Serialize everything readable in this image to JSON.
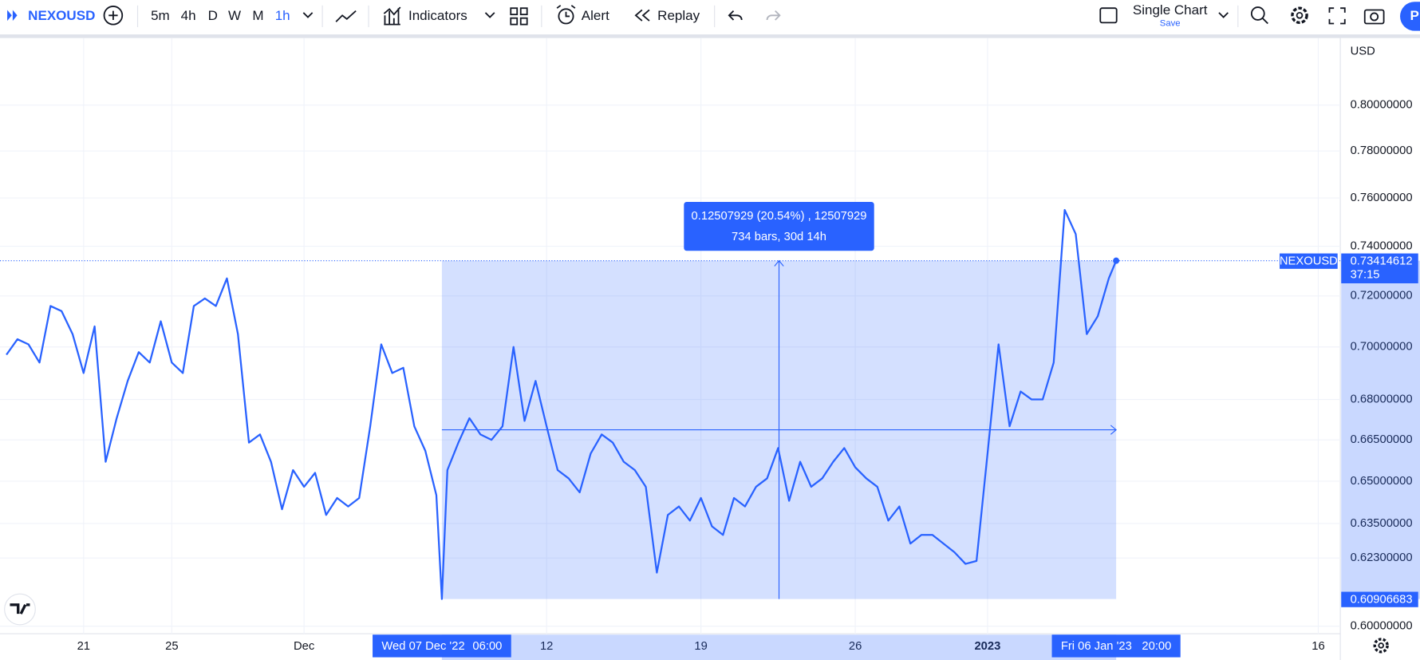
{
  "toolbar": {
    "symbol": "NEXOUSD",
    "intervals": [
      "5m",
      "4h",
      "D",
      "W",
      "M",
      "1h"
    ],
    "active_interval": 5,
    "indicators": "Indicators",
    "alert": "Alert",
    "replay": "Replay",
    "layout": "Single Chart",
    "save": "Save",
    "publish": "P"
  },
  "chart_data": {
    "type": "line",
    "symbol": "NEXOUSD",
    "currency": "USD",
    "color": "#2962ff",
    "log_scale": true,
    "grid": true,
    "x": [
      "2022-11-17 12:00",
      "2022-11-18 00:00",
      "2022-11-18 12:00",
      "2022-11-19 00:00",
      "2022-11-19 12:00",
      "2022-11-20 00:00",
      "2022-11-20 12:00",
      "2022-11-21 00:00",
      "2022-11-21 12:00",
      "2022-11-22 00:00",
      "2022-11-22 12:00",
      "2022-11-23 00:00",
      "2022-11-23 12:00",
      "2022-11-24 00:00",
      "2022-11-24 12:00",
      "2022-11-25 00:00",
      "2022-11-25 12:00",
      "2022-11-26 00:00",
      "2022-11-26 12:00",
      "2022-11-27 00:00",
      "2022-11-27 12:00",
      "2022-11-28 00:00",
      "2022-11-28 12:00",
      "2022-11-29 00:00",
      "2022-11-29 12:00",
      "2022-11-30 00:00",
      "2022-11-30 12:00",
      "2022-12-01 00:00",
      "2022-12-01 12:00",
      "2022-12-02 00:00",
      "2022-12-02 12:00",
      "2022-12-03 00:00",
      "2022-12-03 12:00",
      "2022-12-04 00:00",
      "2022-12-04 12:00",
      "2022-12-05 00:00",
      "2022-12-05 12:00",
      "2022-12-06 00:00",
      "2022-12-06 12:00",
      "2022-12-07 00:00",
      "2022-12-07 06:00",
      "2022-12-07 12:00",
      "2022-12-08 00:00",
      "2022-12-08 12:00",
      "2022-12-09 00:00",
      "2022-12-09 12:00",
      "2022-12-10 00:00",
      "2022-12-10 12:00",
      "2022-12-11 00:00",
      "2022-12-11 12:00",
      "2022-12-12 00:00",
      "2022-12-12 12:00",
      "2022-12-13 00:00",
      "2022-12-13 12:00",
      "2022-12-14 00:00",
      "2022-12-14 12:00",
      "2022-12-15 00:00",
      "2022-12-15 12:00",
      "2022-12-16 00:00",
      "2022-12-16 12:00",
      "2022-12-17 00:00",
      "2022-12-17 12:00",
      "2022-12-18 00:00",
      "2022-12-18 12:00",
      "2022-12-19 00:00",
      "2022-12-19 12:00",
      "2022-12-20 00:00",
      "2022-12-20 12:00",
      "2022-12-21 00:00",
      "2022-12-21 12:00",
      "2022-12-22 00:00",
      "2022-12-22 12:00",
      "2022-12-23 00:00",
      "2022-12-23 12:00",
      "2022-12-24 00:00",
      "2022-12-24 12:00",
      "2022-12-25 00:00",
      "2022-12-25 12:00",
      "2022-12-26 00:00",
      "2022-12-26 12:00",
      "2022-12-27 00:00",
      "2022-12-27 12:00",
      "2022-12-28 00:00",
      "2022-12-28 12:00",
      "2022-12-29 00:00",
      "2022-12-29 12:00",
      "2022-12-30 00:00",
      "2022-12-30 12:00",
      "2022-12-31 00:00",
      "2022-12-31 12:00",
      "2023-01-01 00:00",
      "2023-01-01 12:00",
      "2023-01-02 00:00",
      "2023-01-02 12:00",
      "2023-01-03 00:00",
      "2023-01-03 12:00",
      "2023-01-04 00:00",
      "2023-01-04 12:00",
      "2023-01-05 00:00",
      "2023-01-05 12:00",
      "2023-01-06 00:00",
      "2023-01-06 12:00",
      "2023-01-06 20:00"
    ],
    "values": [
      0.697,
      0.703,
      0.701,
      0.694,
      0.716,
      0.714,
      0.705,
      0.69,
      0.708,
      0.657,
      0.673,
      0.687,
      0.698,
      0.694,
      0.71,
      0.694,
      0.69,
      0.716,
      0.719,
      0.716,
      0.727,
      0.705,
      0.664,
      0.667,
      0.657,
      0.64,
      0.654,
      0.648,
      0.653,
      0.638,
      0.644,
      0.641,
      0.644,
      0.67,
      0.701,
      0.69,
      0.692,
      0.67,
      0.661,
      0.645,
      0.60906683,
      0.654,
      0.664,
      0.673,
      0.667,
      0.665,
      0.67,
      0.7,
      0.672,
      0.687,
      0.67,
      0.654,
      0.651,
      0.646,
      0.66,
      0.667,
      0.664,
      0.657,
      0.654,
      0.648,
      0.618,
      0.638,
      0.641,
      0.636,
      0.644,
      0.634,
      0.631,
      0.644,
      0.641,
      0.648,
      0.651,
      0.662,
      0.643,
      0.657,
      0.648,
      0.651,
      0.657,
      0.662,
      0.655,
      0.651,
      0.648,
      0.636,
      0.641,
      0.628,
      0.631,
      0.631,
      0.628,
      0.625,
      0.621,
      0.622,
      0.66,
      0.701,
      0.67,
      0.683,
      0.68,
      0.68,
      0.694,
      0.755,
      0.745,
      0.705,
      0.712,
      0.727,
      0.73414612
    ],
    "countdown": "37:15",
    "xlim": [
      "2022-11-17 05:00",
      "2023-01-17 00:00"
    ],
    "ylim": [
      0.5975,
      0.831
    ],
    "xticks": [
      {
        "value": "2022-11-21",
        "label": "21"
      },
      {
        "value": "2022-11-25",
        "label": "25"
      },
      {
        "value": "2022-12-01",
        "label": "Dec"
      },
      {
        "value": "2022-12-12",
        "label": "12"
      },
      {
        "value": "2022-12-19",
        "label": "19"
      },
      {
        "value": "2022-12-26",
        "label": "26"
      },
      {
        "value": "2023-01-01",
        "label": "2023"
      },
      {
        "value": "2023-01-16",
        "label": "16"
      }
    ],
    "yticks": [
      {
        "value": 0.8,
        "label": "0.80000000"
      },
      {
        "value": 0.78,
        "label": "0.78000000"
      },
      {
        "value": 0.76,
        "label": "0.76000000"
      },
      {
        "value": 0.74,
        "label": "0.74000000"
      },
      {
        "value": 0.72,
        "label": "0.72000000"
      },
      {
        "value": 0.7,
        "label": "0.70000000"
      },
      {
        "value": 0.68,
        "label": "0.68000000"
      },
      {
        "value": 0.665,
        "label": "0.66500000"
      },
      {
        "value": 0.65,
        "label": "0.65000000"
      },
      {
        "value": 0.635,
        "label": "0.63500000"
      },
      {
        "value": 0.623,
        "label": "0.62300000"
      },
      {
        "value": 0.6,
        "label": "0.60000000"
      }
    ],
    "measure": {
      "x": [
        "2022-12-07 06:00",
        "2023-01-06 20:00"
      ],
      "y": [
        0.60906683,
        0.73414612
      ],
      "start_label": "Wed 07 Dec '22",
      "start_time": "06:00",
      "end_label": "Fri 06 Jan '23",
      "end_time": "20:00",
      "info": [
        "0.12507929 (20.54%) , 12507929",
        "734 bars, 30d 14h"
      ]
    }
  }
}
